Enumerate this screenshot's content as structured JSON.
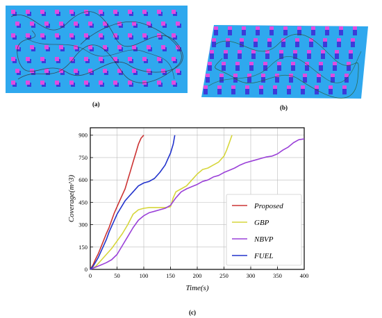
{
  "captions": {
    "a": "(a)",
    "b": "(b)",
    "c": "(c)"
  },
  "colors": {
    "floor": "#2fa8ee",
    "obstacle_top": "#e04ce0",
    "obstacle_side": "#3b3bd9",
    "trajectory": "#333333"
  },
  "chart_data": {
    "type": "line",
    "title": "",
    "xlabel": "Time(s)",
    "ylabel": "Coverage(m^3)",
    "xlim": [
      0,
      400
    ],
    "ylim": [
      0,
      950
    ],
    "xticks": [
      0,
      50,
      100,
      150,
      200,
      250,
      300,
      350,
      400
    ],
    "yticks": [
      0,
      150,
      300,
      450,
      600,
      750,
      900
    ],
    "grid": true,
    "legend_position": "bottom-right",
    "series": [
      {
        "name": "Proposed",
        "color": "#cc3333",
        "points": [
          [
            0,
            0
          ],
          [
            5,
            30
          ],
          [
            10,
            70
          ],
          [
            15,
            105
          ],
          [
            20,
            150
          ],
          [
            25,
            195
          ],
          [
            30,
            240
          ],
          [
            35,
            280
          ],
          [
            40,
            330
          ],
          [
            45,
            380
          ],
          [
            50,
            420
          ],
          [
            55,
            460
          ],
          [
            60,
            500
          ],
          [
            65,
            540
          ],
          [
            70,
            600
          ],
          [
            75,
            660
          ],
          [
            80,
            720
          ],
          [
            85,
            780
          ],
          [
            90,
            840
          ],
          [
            95,
            880
          ],
          [
            100,
            900
          ]
        ]
      },
      {
        "name": "GBP",
        "color": "#d6d63a",
        "points": [
          [
            0,
            0
          ],
          [
            10,
            20
          ],
          [
            20,
            60
          ],
          [
            30,
            100
          ],
          [
            40,
            140
          ],
          [
            50,
            190
          ],
          [
            60,
            240
          ],
          [
            70,
            300
          ],
          [
            80,
            370
          ],
          [
            90,
            400
          ],
          [
            100,
            410
          ],
          [
            110,
            415
          ],
          [
            120,
            415
          ],
          [
            130,
            415
          ],
          [
            140,
            415
          ],
          [
            150,
            420
          ],
          [
            155,
            480
          ],
          [
            160,
            520
          ],
          [
            170,
            540
          ],
          [
            180,
            560
          ],
          [
            190,
            600
          ],
          [
            200,
            640
          ],
          [
            210,
            670
          ],
          [
            220,
            680
          ],
          [
            230,
            700
          ],
          [
            240,
            720
          ],
          [
            250,
            760
          ],
          [
            255,
            800
          ],
          [
            260,
            850
          ],
          [
            265,
            900
          ]
        ]
      },
      {
        "name": "NBVP",
        "color": "#9a40d8",
        "points": [
          [
            0,
            0
          ],
          [
            10,
            15
          ],
          [
            20,
            30
          ],
          [
            30,
            45
          ],
          [
            40,
            65
          ],
          [
            50,
            100
          ],
          [
            60,
            160
          ],
          [
            70,
            220
          ],
          [
            80,
            280
          ],
          [
            90,
            330
          ],
          [
            100,
            360
          ],
          [
            110,
            380
          ],
          [
            120,
            390
          ],
          [
            130,
            400
          ],
          [
            140,
            410
          ],
          [
            150,
            430
          ],
          [
            160,
            480
          ],
          [
            170,
            520
          ],
          [
            180,
            540
          ],
          [
            190,
            555
          ],
          [
            200,
            570
          ],
          [
            210,
            590
          ],
          [
            220,
            600
          ],
          [
            230,
            620
          ],
          [
            240,
            630
          ],
          [
            250,
            650
          ],
          [
            260,
            665
          ],
          [
            270,
            680
          ],
          [
            280,
            700
          ],
          [
            290,
            715
          ],
          [
            300,
            725
          ],
          [
            310,
            735
          ],
          [
            320,
            745
          ],
          [
            330,
            755
          ],
          [
            340,
            760
          ],
          [
            350,
            775
          ],
          [
            360,
            800
          ],
          [
            370,
            820
          ],
          [
            380,
            850
          ],
          [
            390,
            870
          ],
          [
            400,
            875
          ]
        ]
      },
      {
        "name": "FUEL",
        "color": "#2233cc",
        "points": [
          [
            0,
            0
          ],
          [
            5,
            20
          ],
          [
            10,
            50
          ],
          [
            15,
            80
          ],
          [
            20,
            120
          ],
          [
            25,
            160
          ],
          [
            30,
            200
          ],
          [
            35,
            250
          ],
          [
            40,
            290
          ],
          [
            45,
            330
          ],
          [
            50,
            370
          ],
          [
            55,
            400
          ],
          [
            60,
            430
          ],
          [
            65,
            460
          ],
          [
            70,
            480
          ],
          [
            80,
            520
          ],
          [
            90,
            560
          ],
          [
            100,
            580
          ],
          [
            110,
            590
          ],
          [
            120,
            610
          ],
          [
            130,
            650
          ],
          [
            140,
            700
          ],
          [
            145,
            740
          ],
          [
            150,
            780
          ],
          [
            155,
            840
          ],
          [
            158,
            900
          ]
        ]
      }
    ]
  }
}
